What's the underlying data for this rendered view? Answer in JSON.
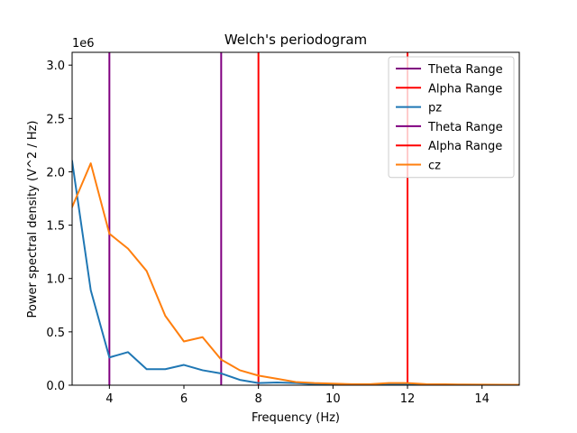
{
  "chart_data": {
    "type": "line",
    "title": "Welch's periodogram",
    "xlabel": "Frequency (Hz)",
    "ylabel": "Power spectral density (V^2 / Hz)",
    "y_offset_label": "1e6",
    "xlim": [
      3,
      15
    ],
    "ylim": [
      0,
      3.12
    ],
    "x_ticks": [
      4,
      6,
      8,
      10,
      12,
      14
    ],
    "y_ticks": [
      0.0,
      0.5,
      1.0,
      1.5,
      2.0,
      2.5,
      3.0
    ],
    "x_tick_labels": [
      "4",
      "6",
      "8",
      "10",
      "12",
      "14"
    ],
    "y_tick_labels": [
      "0.0",
      "0.5",
      "1.0",
      "1.5",
      "2.0",
      "2.5",
      "3.0"
    ],
    "grid": false,
    "legend_position": "upper right",
    "vlines": [
      {
        "name": "Theta Range",
        "x": 4,
        "color": "#800080"
      },
      {
        "name": "Theta Range",
        "x": 7,
        "color": "#800080"
      },
      {
        "name": "Alpha Range",
        "x": 8,
        "color": "#ff0000"
      },
      {
        "name": "Alpha Range",
        "x": 12,
        "color": "#ff0000"
      }
    ],
    "series": [
      {
        "name": "pz",
        "color": "#1f77b4",
        "x": [
          3.0,
          3.5,
          4.0,
          4.5,
          5.0,
          5.5,
          6.0,
          6.5,
          7.0,
          7.5,
          8.0,
          8.5,
          9.0,
          9.5,
          10.0,
          10.5,
          11.0,
          11.5,
          12.0,
          12.5,
          13.0,
          13.5,
          14.0,
          14.5,
          15.0
        ],
        "values": [
          2.1,
          0.89,
          0.26,
          0.31,
          0.15,
          0.15,
          0.19,
          0.14,
          0.11,
          0.05,
          0.02,
          0.025,
          0.02,
          0.01,
          0.01,
          0.005,
          0.005,
          0.005,
          0.005,
          0.003,
          0.003,
          0.002,
          0.002,
          0.002,
          0.002
        ]
      },
      {
        "name": "cz",
        "color": "#ff7f0e",
        "x": [
          3.0,
          3.5,
          4.0,
          4.5,
          5.0,
          5.5,
          6.0,
          6.5,
          7.0,
          7.5,
          8.0,
          8.5,
          9.0,
          9.5,
          10.0,
          10.5,
          11.0,
          11.5,
          12.0,
          12.5,
          13.0,
          13.5,
          14.0,
          14.5,
          15.0
        ],
        "values": [
          1.67,
          2.08,
          1.42,
          1.28,
          1.07,
          0.65,
          0.41,
          0.45,
          0.24,
          0.14,
          0.09,
          0.06,
          0.03,
          0.02,
          0.015,
          0.01,
          0.01,
          0.02,
          0.02,
          0.01,
          0.008,
          0.006,
          0.005,
          0.004,
          0.003
        ]
      }
    ],
    "legend": [
      {
        "label": "Theta Range",
        "color": "#800080"
      },
      {
        "label": "Alpha Range",
        "color": "#ff0000"
      },
      {
        "label": "pz",
        "color": "#1f77b4"
      },
      {
        "label": "Theta Range",
        "color": "#800080"
      },
      {
        "label": "Alpha Range",
        "color": "#ff0000"
      },
      {
        "label": "cz",
        "color": "#ff7f0e"
      }
    ]
  }
}
